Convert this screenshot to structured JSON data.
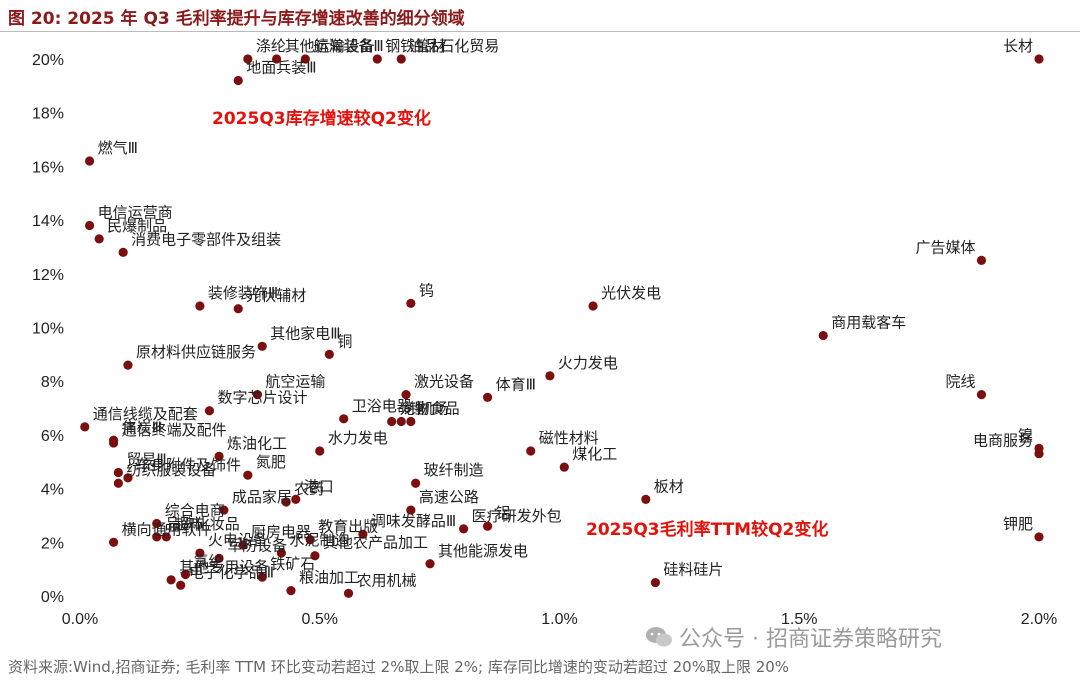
{
  "title": "图 20:  2025 年 Q3 毛利率提升与库存增速改善的细分领域",
  "source": "资料来源:Wind,招商证券; 毛利率 TTM 环比变动若超过 2%取上限 2%; 库存同比增速的变动若超过 20%取上限 20%",
  "watermark": "公众号 · 招商证券策略研究",
  "chart_data": {
    "type": "scatter",
    "x_axis": {
      "min": 0.0,
      "max": 0.02,
      "ticks": [
        "0.0%",
        "0.5%",
        "1.0%",
        "1.5%",
        "2.0%"
      ],
      "tick_values": [
        0,
        0.005,
        0.01,
        0.015,
        0.02
      ]
    },
    "y_axis": {
      "min": 0.0,
      "max": 0.2,
      "ticks": [
        "0%",
        "2%",
        "4%",
        "6%",
        "8%",
        "10%",
        "12%",
        "14%",
        "16%",
        "18%",
        "20%"
      ],
      "tick_values": [
        0,
        0.02,
        0.04,
        0.06,
        0.08,
        0.1,
        0.12,
        0.14,
        0.16,
        0.18,
        0.2
      ]
    },
    "grid": false,
    "point_color": "#7b0f0f",
    "annotations": {
      "y_axis_note": "2025Q3库存增速较Q2变化",
      "x_axis_note": "2025Q3毛利率TTM较Q2变化"
    },
    "points": [
      {
        "name": "长材",
        "x": 0.02,
        "y": 0.2
      },
      {
        "name": "涤纶",
        "x": 0.0035,
        "y": 0.2
      },
      {
        "name": "其他运输设备",
        "x": 0.0041,
        "y": 0.2
      },
      {
        "name": "油品石化贸易",
        "x": 0.0067,
        "y": 0.2
      },
      {
        "name": "钢铁管材",
        "x": 0.0062,
        "y": 0.2
      },
      {
        "name": "地面兵装Ⅲ",
        "x": 0.0033,
        "y": 0.192
      },
      {
        "name": "航海装备Ⅲ",
        "x": 0.0047,
        "y": 0.2
      },
      {
        "name": "燃气Ⅲ",
        "x": 0.0002,
        "y": 0.162
      },
      {
        "name": "电信运营商",
        "x": 0.0002,
        "y": 0.138
      },
      {
        "name": "民爆制品",
        "x": 0.0004,
        "y": 0.133
      },
      {
        "name": "消费电子零部件及组装",
        "x": 0.0009,
        "y": 0.128
      },
      {
        "name": "广告媒体",
        "x": 0.0188,
        "y": 0.125
      },
      {
        "name": "钨",
        "x": 0.0069,
        "y": 0.109
      },
      {
        "name": "光伏发电",
        "x": 0.0107,
        "y": 0.108
      },
      {
        "name": "装修装饰Ⅲ",
        "x": 0.0025,
        "y": 0.108
      },
      {
        "name": "光伏辅材",
        "x": 0.0033,
        "y": 0.107
      },
      {
        "name": "其他家电Ⅲ",
        "x": 0.0038,
        "y": 0.093
      },
      {
        "name": "商用载客车",
        "x": 0.0155,
        "y": 0.097
      },
      {
        "name": "铜",
        "x": 0.0052,
        "y": 0.09
      },
      {
        "name": "原材料供应链服务",
        "x": 0.001,
        "y": 0.086
      },
      {
        "name": "火力发电",
        "x": 0.0098,
        "y": 0.082
      },
      {
        "name": "航空运输",
        "x": 0.0037,
        "y": 0.075
      },
      {
        "name": "院线",
        "x": 0.0188,
        "y": 0.075
      },
      {
        "name": "数字芯片设计",
        "x": 0.0027,
        "y": 0.069
      },
      {
        "name": "激光设备",
        "x": 0.0068,
        "y": 0.075
      },
      {
        "name": "体育Ⅲ",
        "x": 0.0085,
        "y": 0.074
      },
      {
        "name": "卫浴电器",
        "x": 0.0055,
        "y": 0.066
      },
      {
        "name": "锂",
        "x": 0.0067,
        "y": 0.065
      },
      {
        "name": "机场",
        "x": 0.0069,
        "y": 0.065
      },
      {
        "name": "通信线缆及配套",
        "x": 0.0001,
        "y": 0.063
      },
      {
        "name": "焦炭Ⅲ",
        "x": 0.0007,
        "y": 0.058
      },
      {
        "name": "宠物食品",
        "x": 0.0065,
        "y": 0.065
      },
      {
        "name": "磁性材料",
        "x": 0.0094,
        "y": 0.054
      },
      {
        "name": "镍",
        "x": 0.02,
        "y": 0.055
      },
      {
        "name": "通信终端及配件",
        "x": 0.0007,
        "y": 0.057
      },
      {
        "name": "炼油化工",
        "x": 0.0029,
        "y": 0.052
      },
      {
        "name": "氮肥",
        "x": 0.0035,
        "y": 0.045
      },
      {
        "name": "水力发电",
        "x": 0.005,
        "y": 0.054
      },
      {
        "name": "电商服务",
        "x": 0.02,
        "y": 0.053
      },
      {
        "name": "煤化工",
        "x": 0.0101,
        "y": 0.048
      },
      {
        "name": "贸易Ⅲ",
        "x": 0.0008,
        "y": 0.046
      },
      {
        "name": "玻纤制造",
        "x": 0.007,
        "y": 0.042
      },
      {
        "name": "农药",
        "x": 0.0043,
        "y": 0.035
      },
      {
        "name": "港口",
        "x": 0.0045,
        "y": 0.036
      },
      {
        "name": "纺织服装设备",
        "x": 0.0008,
        "y": 0.042
      },
      {
        "name": "车身附件及饰件",
        "x": 0.001,
        "y": 0.044
      },
      {
        "name": "成品家居",
        "x": 0.003,
        "y": 0.032
      },
      {
        "name": "板材",
        "x": 0.0118,
        "y": 0.036
      },
      {
        "name": "高速公路",
        "x": 0.0069,
        "y": 0.032
      },
      {
        "name": "钾肥",
        "x": 0.02,
        "y": 0.022
      },
      {
        "name": "医疗研发外包",
        "x": 0.008,
        "y": 0.025
      },
      {
        "name": "铝",
        "x": 0.0085,
        "y": 0.026
      },
      {
        "name": "综合电商",
        "x": 0.0016,
        "y": 0.027
      },
      {
        "name": "品牌化妆品",
        "x": 0.0016,
        "y": 0.022
      },
      {
        "name": "超市",
        "x": 0.0018,
        "y": 0.022
      },
      {
        "name": "厨房电器",
        "x": 0.0034,
        "y": 0.019
      },
      {
        "name": "教育出版",
        "x": 0.0048,
        "y": 0.021
      },
      {
        "name": "调味发酵品Ⅲ",
        "x": 0.0059,
        "y": 0.023
      },
      {
        "name": "横向通用软件",
        "x": 0.0007,
        "y": 0.02
      },
      {
        "name": "火电设备",
        "x": 0.0025,
        "y": 0.016
      },
      {
        "name": "军防设备",
        "x": 0.0029,
        "y": 0.014
      },
      {
        "name": "水泥制造",
        "x": 0.0042,
        "y": 0.016
      },
      {
        "name": "其他农产品加工",
        "x": 0.0049,
        "y": 0.015
      },
      {
        "name": "其他能源发电",
        "x": 0.0073,
        "y": 0.012
      },
      {
        "name": "硅料硅片",
        "x": 0.012,
        "y": 0.005
      },
      {
        "name": "铁矿石",
        "x": 0.0038,
        "y": 0.007
      },
      {
        "name": "其他专用设备",
        "x": 0.0019,
        "y": 0.006
      },
      {
        "name": "氯纶",
        "x": 0.0022,
        "y": 0.008
      },
      {
        "name": "电子化学品Ⅲ",
        "x": 0.0021,
        "y": 0.004
      },
      {
        "name": "粮油加工",
        "x": 0.0044,
        "y": 0.002
      },
      {
        "name": "农用机械",
        "x": 0.0056,
        "y": 0.001
      }
    ]
  }
}
